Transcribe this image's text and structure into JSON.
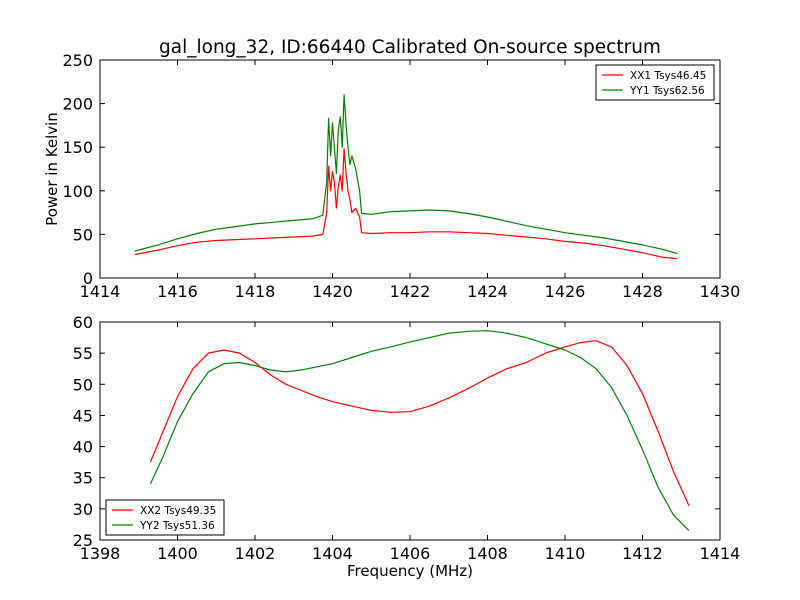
{
  "title": "gal_long_32, ID:66440 Calibrated On-source spectrum",
  "chart_data": [
    {
      "type": "line",
      "title": "gal_long_32, ID:66440 Calibrated On-source spectrum",
      "xlabel": "",
      "ylabel": "Power in Kelvin",
      "xlim": [
        1414,
        1430
      ],
      "ylim": [
        0,
        250
      ],
      "xticks": [
        1414,
        1416,
        1418,
        1420,
        1422,
        1424,
        1426,
        1428,
        1430
      ],
      "yticks": [
        0,
        50,
        100,
        150,
        200,
        250
      ],
      "legend_position": "top-right",
      "series": [
        {
          "name": "XX1 Tsys46.45",
          "color": "#ff0000",
          "x": [
            1414.9,
            1415.5,
            1416.0,
            1416.5,
            1417.0,
            1417.5,
            1418.0,
            1418.5,
            1419.0,
            1419.5,
            1419.75,
            1419.85,
            1419.9,
            1419.95,
            1420.0,
            1420.05,
            1420.1,
            1420.15,
            1420.2,
            1420.25,
            1420.3,
            1420.35,
            1420.4,
            1420.45,
            1420.5,
            1420.6,
            1420.7,
            1420.75,
            1421.0,
            1421.5,
            1422.0,
            1422.5,
            1423.0,
            1423.5,
            1424.0,
            1424.5,
            1425.0,
            1425.5,
            1426.0,
            1426.5,
            1427.0,
            1427.5,
            1428.0,
            1428.5,
            1428.9
          ],
          "values": [
            27,
            32,
            37,
            41,
            43,
            44,
            45,
            46,
            47,
            48,
            50,
            75,
            128,
            100,
            122,
            110,
            80,
            105,
            118,
            100,
            148,
            120,
            100,
            90,
            75,
            80,
            70,
            52,
            51,
            52,
            52,
            53,
            53,
            52,
            51,
            49,
            47,
            45,
            42,
            40,
            37,
            33,
            29,
            24,
            22
          ]
        },
        {
          "name": "YY1 Tsys62.56",
          "color": "#008000",
          "x": [
            1414.9,
            1415.5,
            1416.0,
            1416.5,
            1417.0,
            1417.5,
            1418.0,
            1418.5,
            1419.0,
            1419.5,
            1419.75,
            1419.85,
            1419.9,
            1419.95,
            1420.0,
            1420.05,
            1420.1,
            1420.15,
            1420.2,
            1420.25,
            1420.3,
            1420.35,
            1420.4,
            1420.45,
            1420.5,
            1420.6,
            1420.7,
            1420.75,
            1421.0,
            1421.5,
            1422.0,
            1422.5,
            1423.0,
            1423.5,
            1424.0,
            1424.5,
            1425.0,
            1425.5,
            1426.0,
            1426.5,
            1427.0,
            1427.5,
            1428.0,
            1428.5,
            1428.9
          ],
          "values": [
            31,
            38,
            45,
            51,
            56,
            59,
            62,
            64,
            66,
            68,
            72,
            110,
            183,
            140,
            178,
            150,
            120,
            170,
            185,
            150,
            210,
            175,
            150,
            130,
            140,
            125,
            100,
            74,
            73,
            76,
            77,
            78,
            77,
            74,
            70,
            65,
            60,
            56,
            52,
            49,
            46,
            42,
            38,
            33,
            28
          ]
        }
      ]
    },
    {
      "type": "line",
      "title": "",
      "xlabel": "Frequency (MHz)",
      "ylabel": "",
      "xlim": [
        1398,
        1414
      ],
      "ylim": [
        25,
        60
      ],
      "xticks": [
        1398,
        1400,
        1402,
        1404,
        1406,
        1408,
        1410,
        1412,
        1414
      ],
      "yticks": [
        25,
        30,
        35,
        40,
        45,
        50,
        55,
        60
      ],
      "legend_position": "bottom-left",
      "series": [
        {
          "name": "XX2 Tsys49.35",
          "color": "#ff0000",
          "x": [
            1399.3,
            1399.6,
            1400.0,
            1400.4,
            1400.8,
            1401.2,
            1401.6,
            1402.0,
            1402.4,
            1402.8,
            1403.2,
            1403.6,
            1404.0,
            1404.5,
            1405.0,
            1405.5,
            1406.0,
            1406.5,
            1407.0,
            1407.5,
            1408.0,
            1408.5,
            1409.0,
            1409.5,
            1410.0,
            1410.4,
            1410.8,
            1411.2,
            1411.6,
            1412.0,
            1412.4,
            1412.8,
            1413.2
          ],
          "values": [
            37.5,
            42,
            48,
            52.5,
            55,
            55.5,
            55,
            53.5,
            51.5,
            50,
            49,
            48,
            47.2,
            46.5,
            45.8,
            45.5,
            45.6,
            46.5,
            47.8,
            49.3,
            51,
            52.5,
            53.5,
            55,
            56,
            56.7,
            57,
            56,
            53,
            48.5,
            42.5,
            36,
            30.5
          ]
        },
        {
          "name": "YY2 Tsys51.36",
          "color": "#008000",
          "x": [
            1399.3,
            1399.6,
            1400.0,
            1400.4,
            1400.8,
            1401.2,
            1401.6,
            1402.0,
            1402.4,
            1402.8,
            1403.2,
            1403.6,
            1404.0,
            1404.5,
            1405.0,
            1405.5,
            1406.0,
            1406.5,
            1407.0,
            1407.5,
            1408.0,
            1408.5,
            1409.0,
            1409.5,
            1410.0,
            1410.4,
            1410.8,
            1411.2,
            1411.6,
            1412.0,
            1412.4,
            1412.8,
            1413.2
          ],
          "values": [
            34,
            38,
            44,
            48.5,
            52,
            53.3,
            53.5,
            53,
            52.3,
            52,
            52.3,
            52.8,
            53.3,
            54.3,
            55.3,
            56,
            56.8,
            57.5,
            58.2,
            58.5,
            58.6,
            58.2,
            57.5,
            56.5,
            55.5,
            54.3,
            52.5,
            49.5,
            45,
            39.5,
            33.5,
            29,
            26.5
          ]
        }
      ]
    }
  ]
}
